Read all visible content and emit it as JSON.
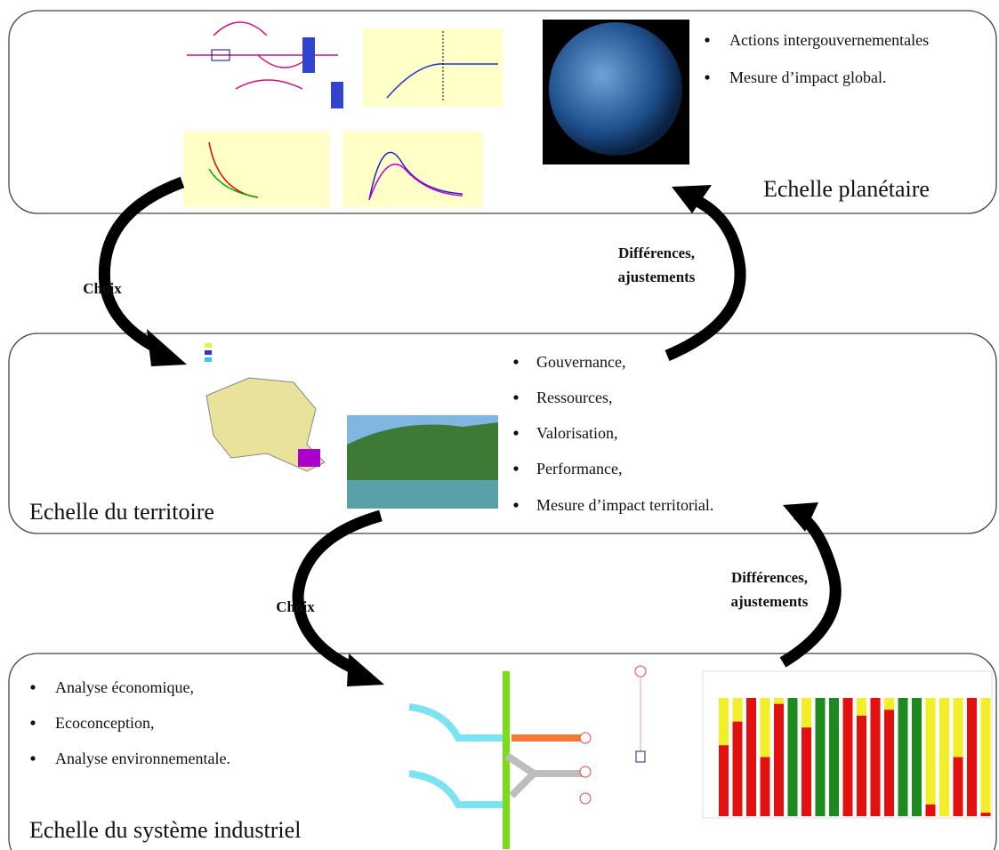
{
  "levels": [
    {
      "title": "Echelle planétaire",
      "bullets": [
        "Actions intergouvernementales",
        "Mesure d’impact global."
      ]
    },
    {
      "title": "Echelle du territoire",
      "bullets": [
        "Gouvernance,",
        "Ressources,",
        "Valorisation,",
        "Performance,",
        "Mesure d’impact territorial."
      ]
    },
    {
      "title": "Echelle du système industriel",
      "bullets": [
        "Analyse économique,",
        "Ecoconception,",
        "Analyse environnementale."
      ]
    }
  ],
  "arrows": [
    {
      "label": [
        "Choix"
      ]
    },
    {
      "label": [
        "Différences,",
        "ajustements"
      ]
    },
    {
      "label": [
        "Choix"
      ]
    },
    {
      "label": [
        "Différences,",
        "ajustements"
      ]
    }
  ]
}
